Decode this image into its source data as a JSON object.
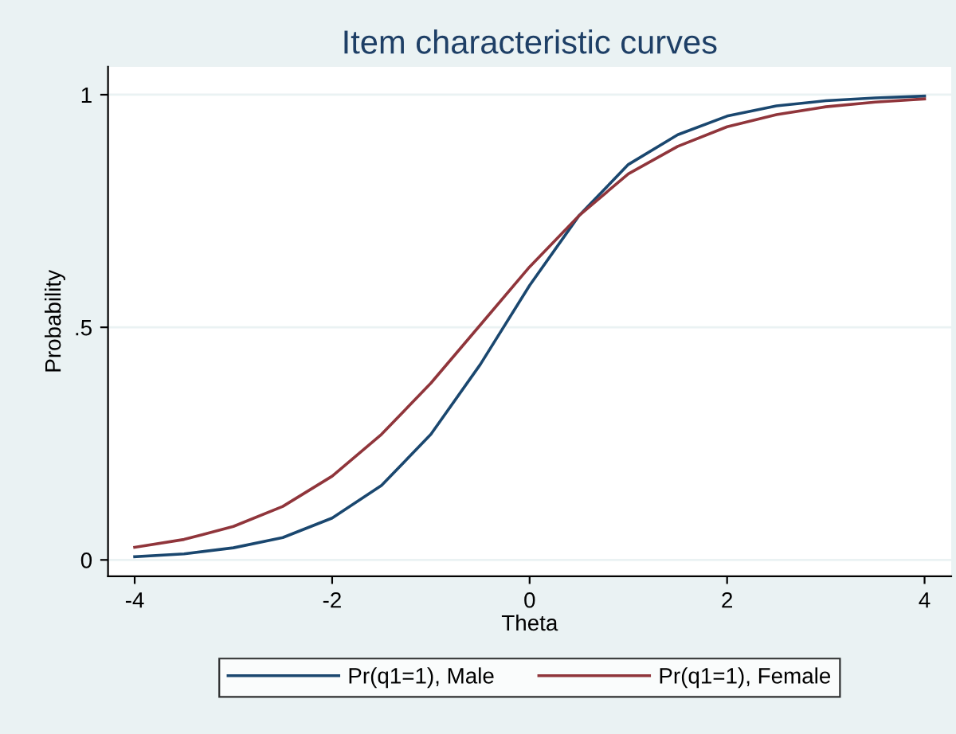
{
  "chart_data": {
    "type": "line",
    "title": "Item characteristic curves",
    "xlabel": "Theta",
    "ylabel": "Probability",
    "x": [
      -4,
      -3.5,
      -3,
      -2.5,
      -2,
      -1.5,
      -1,
      -0.5,
      0,
      0.5,
      1,
      1.5,
      2,
      2.5,
      3,
      3.5,
      4
    ],
    "series": [
      {
        "name": "Pr(q1=1), Male",
        "color": "#1a476f",
        "values": [
          0.007,
          0.013,
          0.026,
          0.048,
          0.09,
          0.16,
          0.27,
          0.42,
          0.59,
          0.74,
          0.85,
          0.914,
          0.954,
          0.976,
          0.987,
          0.993,
          0.997
        ]
      },
      {
        "name": "Pr(q1=1), Female",
        "color": "#90353b",
        "values": [
          0.027,
          0.044,
          0.072,
          0.115,
          0.18,
          0.27,
          0.38,
          0.505,
          0.63,
          0.74,
          0.83,
          0.889,
          0.931,
          0.957,
          0.974,
          0.984,
          0.991
        ]
      }
    ],
    "xlim": [
      -4.27,
      4.27
    ],
    "xticks": [
      -4,
      -2,
      0,
      2,
      4
    ],
    "ylim": [
      -0.035,
      1.06
    ],
    "yticks": [
      0,
      {
        "value": 0.5,
        "label": ".5"
      },
      1
    ],
    "grid": "y",
    "legend": "bottom",
    "marker": "none",
    "line_style": "solid"
  }
}
